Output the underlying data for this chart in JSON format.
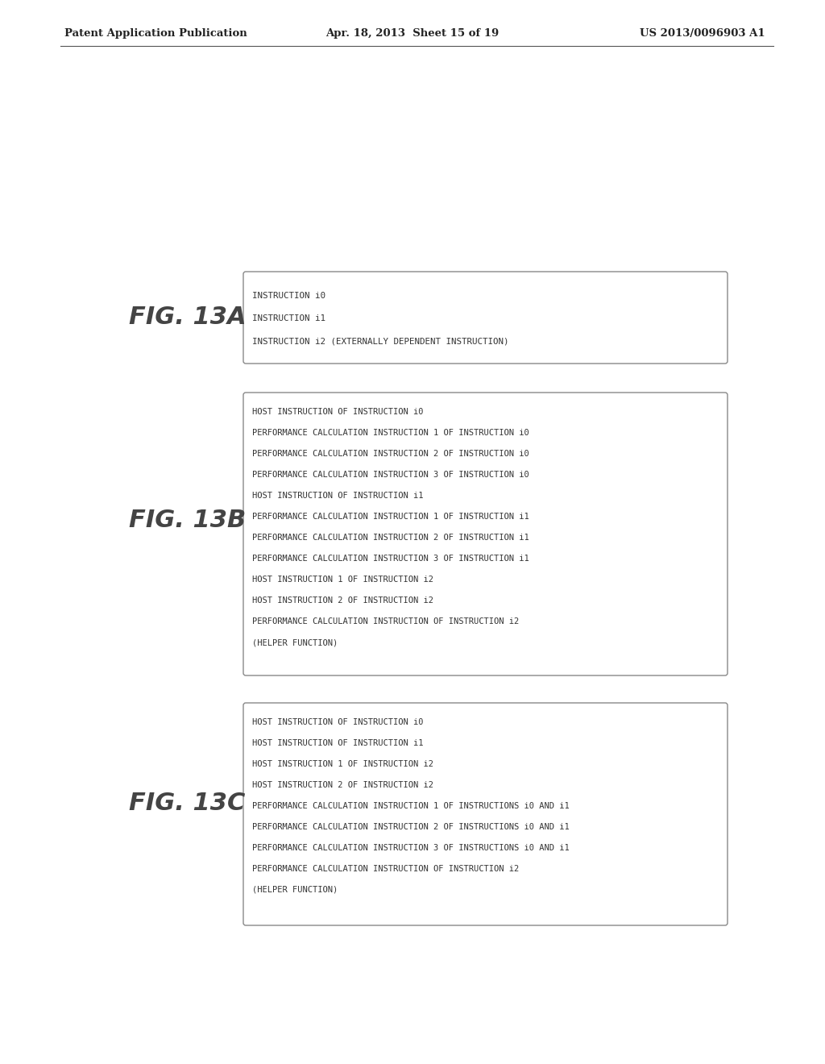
{
  "header_left": "Patent Application Publication",
  "header_center": "Apr. 18, 2013  Sheet 15 of 19",
  "header_right": "US 2013/0096903 A1",
  "fig_labels": [
    "FIG. 13A",
    "FIG. 13B",
    "FIG. 13C"
  ],
  "box_13A_lines": [
    "INSTRUCTION i0",
    "INSTRUCTION i1",
    "INSTRUCTION i2 (EXTERNALLY DEPENDENT INSTRUCTION)"
  ],
  "box_13B_lines": [
    "HOST INSTRUCTION OF INSTRUCTION i0",
    "PERFORMANCE CALCULATION INSTRUCTION 1 OF INSTRUCTION i0",
    "PERFORMANCE CALCULATION INSTRUCTION 2 OF INSTRUCTION i0",
    "PERFORMANCE CALCULATION INSTRUCTION 3 OF INSTRUCTION i0",
    "HOST INSTRUCTION OF INSTRUCTION i1",
    "PERFORMANCE CALCULATION INSTRUCTION 1 OF INSTRUCTION i1",
    "PERFORMANCE CALCULATION INSTRUCTION 2 OF INSTRUCTION i1",
    "PERFORMANCE CALCULATION INSTRUCTION 3 OF INSTRUCTION i1",
    "HOST INSTRUCTION 1 OF INSTRUCTION i2",
    "HOST INSTRUCTION 2 OF INSTRUCTION i2",
    "PERFORMANCE CALCULATION INSTRUCTION OF INSTRUCTION i2",
    "(HELPER FUNCTION)"
  ],
  "box_13C_lines": [
    "HOST INSTRUCTION OF INSTRUCTION i0",
    "HOST INSTRUCTION OF INSTRUCTION i1",
    "HOST INSTRUCTION 1 OF INSTRUCTION i2",
    "HOST INSTRUCTION 2 OF INSTRUCTION i2",
    "PERFORMANCE CALCULATION INSTRUCTION 1 OF INSTRUCTIONS i0 AND i1",
    "PERFORMANCE CALCULATION INSTRUCTION 2 OF INSTRUCTIONS i0 AND i1",
    "PERFORMANCE CALCULATION INSTRUCTION 3 OF INSTRUCTIONS i0 AND i1",
    "PERFORMANCE CALCULATION INSTRUCTION OF INSTRUCTION i2",
    "(HELPER FUNCTION)"
  ],
  "bg_color": "#ffffff",
  "box_bg": "#ffffff",
  "box_edge": "#888888",
  "text_color": "#333333",
  "header_color": "#222222",
  "fig_label_color": "#444444"
}
